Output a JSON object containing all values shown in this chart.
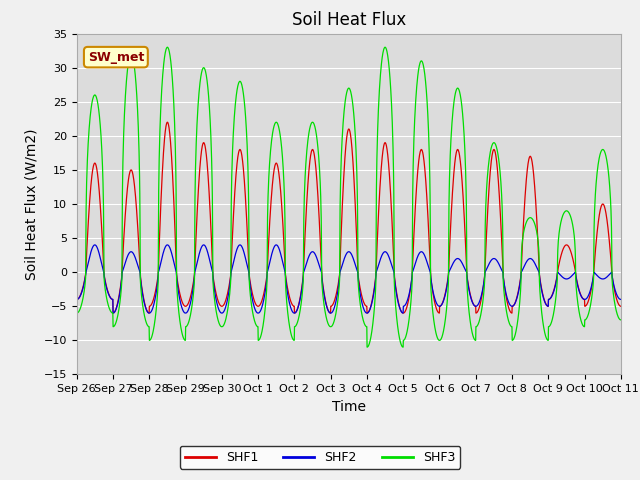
{
  "title": "Soil Heat Flux",
  "ylabel": "Soil Heat Flux (W/m2)",
  "xlabel": "Time",
  "ylim": [
    -15,
    35
  ],
  "yticks": [
    -15,
    -10,
    -5,
    0,
    5,
    10,
    15,
    20,
    25,
    30,
    35
  ],
  "xtick_labels": [
    "Sep 26",
    "Sep 27",
    "Sep 28",
    "Sep 29",
    "Sep 30",
    "Oct 1",
    "Oct 2",
    "Oct 3",
    "Oct 4",
    "Oct 5",
    "Oct 6",
    "Oct 7",
    "Oct 8",
    "Oct 9",
    "Oct 10",
    "Oct 11"
  ],
  "legend_labels": [
    "SHF1",
    "SHF2",
    "SHF3"
  ],
  "legend_colors": [
    "#dd0000",
    "#0000dd",
    "#00dd00"
  ],
  "annotation_text": "SW_met",
  "bg_color": "#dcdcdc",
  "fig_color": "#f0f0f0",
  "title_fontsize": 12,
  "axis_fontsize": 10,
  "tick_fontsize": 8,
  "n_days": 15,
  "shf1_peaks": [
    16,
    15,
    22,
    19,
    18,
    16,
    18,
    21,
    19,
    18,
    18,
    18,
    17,
    4,
    10
  ],
  "shf2_peaks": [
    4,
    3,
    4,
    4,
    4,
    4,
    3,
    3,
    3,
    3,
    2,
    2,
    2,
    -1,
    -1
  ],
  "shf3_peaks": [
    26,
    32,
    33,
    30,
    28,
    22,
    22,
    27,
    33,
    31,
    27,
    19,
    8,
    9,
    18
  ],
  "shf1_troughs": [
    -4,
    -6,
    -5,
    -5,
    -5,
    -5,
    -6,
    -5,
    -6,
    -6,
    -5,
    -6,
    -5,
    -4,
    -5
  ],
  "shf2_troughs": [
    -4,
    -6,
    -6,
    -6,
    -6,
    -6,
    -6,
    -6,
    -6,
    -5,
    -5,
    -5,
    -5,
    -4,
    -4
  ],
  "shf3_troughs": [
    -6,
    -8,
    -10,
    -8,
    -8,
    -10,
    -8,
    -8,
    -11,
    -10,
    -10,
    -8,
    -10,
    -8,
    -7
  ]
}
